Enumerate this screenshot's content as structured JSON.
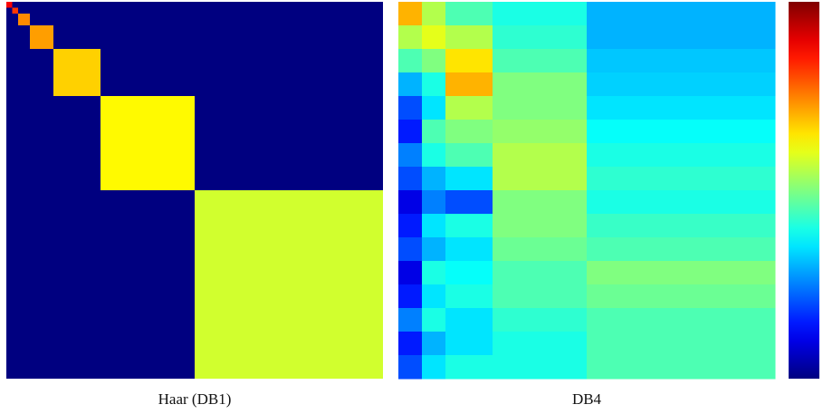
{
  "chart_data": [
    {
      "type": "block-heatmap",
      "caption": "Haar (DB1)",
      "colormap": "jet",
      "clim": [
        0,
        1
      ],
      "grid_size": 64,
      "background": 0,
      "block_sizes": [
        1,
        1,
        2,
        4,
        8,
        16,
        32
      ],
      "block_values": [
        0.88,
        0.82,
        0.74,
        0.72,
        0.67,
        0.63,
        0.58
      ]
    },
    {
      "type": "band-heatmap",
      "caption": "DB4",
      "colormap": "jet",
      "clim": [
        0,
        1
      ],
      "grid_size": 64,
      "column_widths": [
        4,
        4,
        8,
        16,
        32
      ],
      "values": [
        [
          0.7,
          0.55,
          0.45,
          0.4,
          0.3
        ],
        [
          0.55,
          0.6,
          0.55,
          0.42,
          0.3
        ],
        [
          0.45,
          0.5,
          0.65,
          0.45,
          0.32
        ],
        [
          0.3,
          0.4,
          0.7,
          0.5,
          0.33
        ],
        [
          0.2,
          0.35,
          0.55,
          0.5,
          0.35
        ],
        [
          0.15,
          0.45,
          0.5,
          0.52,
          0.38
        ],
        [
          0.25,
          0.4,
          0.45,
          0.55,
          0.4
        ],
        [
          0.2,
          0.3,
          0.35,
          0.55,
          0.42
        ],
        [
          0.1,
          0.25,
          0.2,
          0.5,
          0.4
        ],
        [
          0.15,
          0.35,
          0.4,
          0.5,
          0.43
        ],
        [
          0.2,
          0.3,
          0.35,
          0.48,
          0.45
        ],
        [
          0.1,
          0.4,
          0.38,
          0.45,
          0.5
        ],
        [
          0.15,
          0.35,
          0.4,
          0.45,
          0.48
        ],
        [
          0.25,
          0.4,
          0.35,
          0.42,
          0.45
        ],
        [
          0.15,
          0.3,
          0.35,
          0.4,
          0.45
        ],
        [
          0.2,
          0.35,
          0.4,
          0.4,
          0.45
        ]
      ]
    }
  ]
}
